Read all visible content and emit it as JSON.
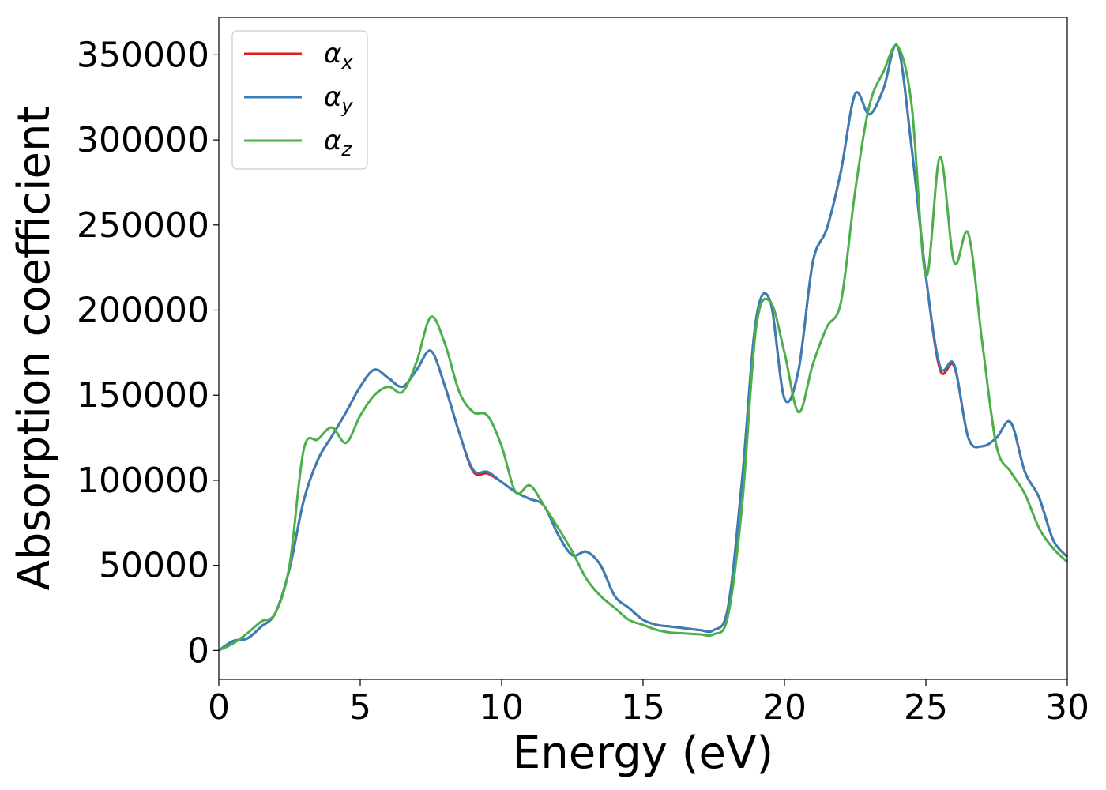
{
  "chart_data": {
    "type": "line",
    "title": "",
    "xlabel": "Energy (eV)",
    "ylabel": "Absorption coefficient",
    "xlim": [
      0,
      30
    ],
    "ylim": [
      -17000,
      372000
    ],
    "xticks": [
      0,
      5,
      10,
      15,
      20,
      25,
      30
    ],
    "yticks": [
      0,
      50000,
      100000,
      150000,
      200000,
      250000,
      300000,
      350000
    ],
    "grid": false,
    "legend_position": "top-left",
    "series": [
      {
        "name": "α",
        "subscript": "x",
        "color": "#e41a1c",
        "x": [
          0,
          0.5,
          1,
          1.5,
          2,
          2.5,
          3,
          3.5,
          4,
          4.5,
          5,
          5.5,
          6,
          6.5,
          7,
          7.5,
          8,
          8.5,
          9,
          9.5,
          10,
          10.5,
          11,
          11.5,
          12,
          12.5,
          13,
          13.5,
          14,
          14.5,
          15,
          15.5,
          16,
          16.5,
          17,
          17.5,
          18,
          18.5,
          19,
          19.5,
          20,
          20.5,
          21,
          21.5,
          22,
          22.5,
          23,
          23.5,
          24,
          24.5,
          25,
          25.5,
          26,
          26.5,
          27,
          27.5,
          28,
          28.5,
          29,
          29.5,
          30
        ],
        "values": [
          0,
          5500,
          7000,
          14000,
          22000,
          48000,
          88000,
          112000,
          126000,
          140000,
          155000,
          165000,
          160000,
          155000,
          165000,
          176000,
          155000,
          128000,
          105000,
          104000,
          99000,
          93000,
          89000,
          85000,
          68000,
          56000,
          58000,
          50000,
          32000,
          25000,
          18000,
          15000,
          14000,
          13000,
          12000,
          12000,
          25000,
          100000,
          195000,
          205000,
          148000,
          165000,
          228000,
          248000,
          282000,
          327000,
          315000,
          330000,
          355000,
          295000,
          220000,
          165000,
          167000,
          125000,
          120000,
          125000,
          134000,
          105000,
          90000,
          65000,
          55000
        ]
      },
      {
        "name": "α",
        "subscript": "y",
        "color": "#377eb8",
        "x": [
          0,
          0.5,
          1,
          1.5,
          2,
          2.5,
          3,
          3.5,
          4,
          4.5,
          5,
          5.5,
          6,
          6.5,
          7,
          7.5,
          8,
          8.5,
          9,
          9.5,
          10,
          10.5,
          11,
          11.5,
          12,
          12.5,
          13,
          13.5,
          14,
          14.5,
          15,
          15.5,
          16,
          16.5,
          17,
          17.5,
          18,
          18.5,
          19,
          19.5,
          20,
          20.5,
          21,
          21.5,
          22,
          22.5,
          23,
          23.5,
          24,
          24.5,
          25,
          25.5,
          26,
          26.5,
          27,
          27.5,
          28,
          28.5,
          29,
          29.5,
          30
        ],
        "values": [
          0,
          5500,
          7000,
          14000,
          22000,
          48000,
          88000,
          112000,
          126000,
          140000,
          155000,
          165000,
          160000,
          155000,
          165000,
          176000,
          155000,
          128000,
          106000,
          105000,
          99000,
          93000,
          89000,
          85000,
          68000,
          56000,
          58000,
          50000,
          32000,
          25000,
          18000,
          15000,
          14000,
          13000,
          12000,
          12000,
          25000,
          100000,
          195000,
          205000,
          148000,
          165000,
          228000,
          248000,
          282000,
          327000,
          315000,
          330000,
          355000,
          295000,
          220000,
          167000,
          168000,
          125000,
          120000,
          125000,
          134000,
          105000,
          90000,
          65000,
          55000
        ]
      },
      {
        "name": "α",
        "subscript": "z",
        "color": "#4daf4a",
        "x": [
          0,
          0.5,
          1,
          1.5,
          2,
          2.5,
          3,
          3.5,
          4,
          4.5,
          5,
          5.5,
          6,
          6.5,
          7,
          7.5,
          8,
          8.5,
          9,
          9.5,
          10,
          10.5,
          11,
          11.5,
          12,
          12.5,
          13,
          13.5,
          14,
          14.5,
          15,
          15.5,
          16,
          16.5,
          17,
          17.5,
          18,
          18.5,
          19,
          19.5,
          20,
          20.5,
          21,
          21.5,
          22,
          22.5,
          23,
          23.5,
          24,
          24.5,
          25,
          25.5,
          26,
          26.5,
          27,
          27.5,
          28,
          28.5,
          29,
          29.5,
          30
        ],
        "values": [
          0,
          4000,
          10000,
          17000,
          22000,
          50000,
          118000,
          124000,
          131000,
          122000,
          138000,
          150000,
          155000,
          152000,
          170000,
          196000,
          180000,
          152000,
          140000,
          138000,
          120000,
          93000,
          97000,
          85000,
          72000,
          58000,
          42000,
          32000,
          25000,
          18000,
          15000,
          12000,
          10500,
          10000,
          9500,
          9500,
          20000,
          85000,
          190000,
          205000,
          175000,
          140000,
          168000,
          190000,
          205000,
          270000,
          320000,
          340000,
          355000,
          320000,
          220000,
          290000,
          228000,
          245000,
          180000,
          120000,
          105000,
          92000,
          72000,
          60000,
          52000
        ]
      }
    ]
  }
}
